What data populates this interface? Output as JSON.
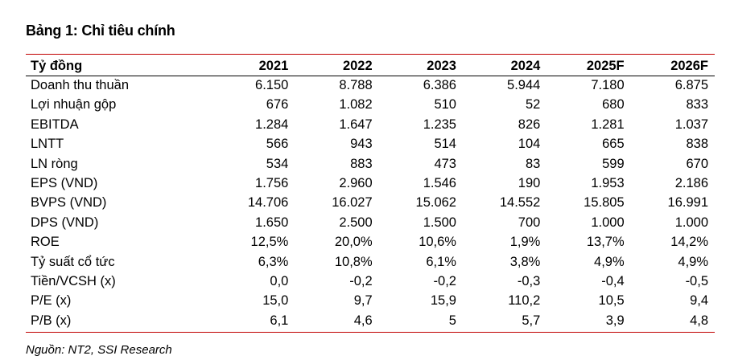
{
  "title": "Bảng 1: Chỉ tiêu chính",
  "table": {
    "headers": [
      "Tỷ đồng",
      "2021",
      "2022",
      "2023",
      "2024",
      "2025F",
      "2026F"
    ],
    "rows": [
      [
        "Doanh thu thuần",
        "6.150",
        "8.788",
        "6.386",
        "5.944",
        "7.180",
        "6.875"
      ],
      [
        "Lợi nhuận gộp",
        "676",
        "1.082",
        "510",
        "52",
        "680",
        "833"
      ],
      [
        "EBITDA",
        "1.284",
        "1.647",
        "1.235",
        "826",
        "1.281",
        "1.037"
      ],
      [
        "LNTT",
        "566",
        "943",
        "514",
        "104",
        "665",
        "838"
      ],
      [
        "LN ròng",
        "534",
        "883",
        "473",
        "83",
        "599",
        "670"
      ],
      [
        "EPS (VND)",
        "1.756",
        "2.960",
        "1.546",
        "190",
        "1.953",
        "2.186"
      ],
      [
        "BVPS (VND)",
        "14.706",
        "16.027",
        "15.062",
        "14.552",
        "15.805",
        "16.991"
      ],
      [
        "DPS (VND)",
        "1.650",
        "2.500",
        "1.500",
        "700",
        "1.000",
        "1.000"
      ],
      [
        "ROE",
        "12,5%",
        "20,0%",
        "10,6%",
        "1,9%",
        "13,7%",
        "14,2%"
      ],
      [
        "Tỷ suất cổ tức",
        "6,3%",
        "10,8%",
        "6,1%",
        "3,8%",
        "4,9%",
        "4,9%"
      ],
      [
        "Tiền/VCSH (x)",
        "0,0",
        "-0,2",
        "-0,2",
        "-0,3",
        "-0,4",
        "-0,5"
      ],
      [
        "P/E (x)",
        "15,0",
        "9,7",
        "15,9",
        "110,2",
        "10,5",
        "9,4"
      ],
      [
        "P/B (x)",
        "6,1",
        "4,6",
        "5",
        "5,7",
        "3,9",
        "4,8"
      ]
    ]
  },
  "source": "Nguồn: NT2, SSI Research",
  "colors": {
    "rule_accent": "#c00000",
    "header_rule": "#000000"
  }
}
